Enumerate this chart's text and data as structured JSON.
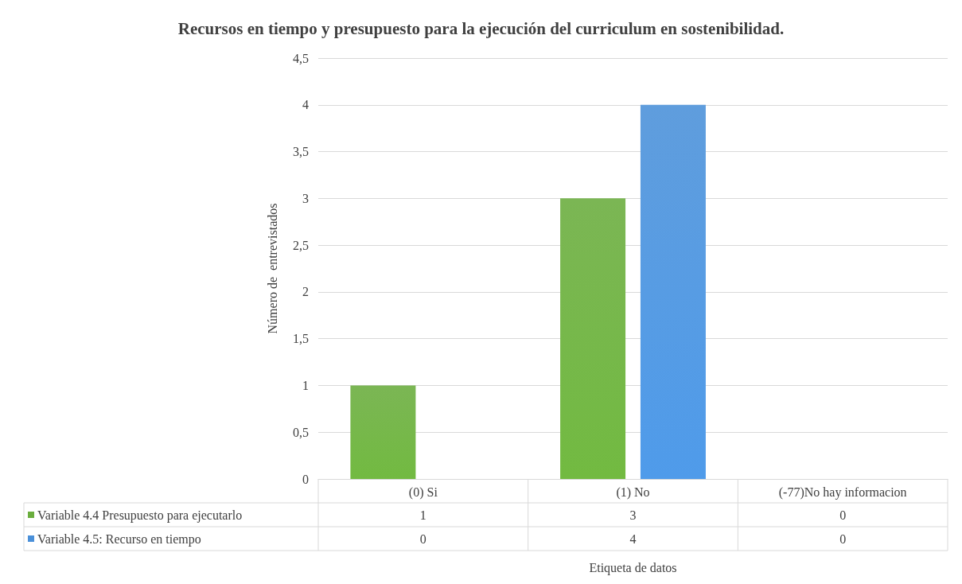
{
  "chart_data": {
    "type": "bar",
    "title": "Recursos en tiempo y presupuesto para la ejecución del curriculum en sostenibilidad.",
    "xlabel": "Etiqueta de datos",
    "ylabel": "Número de  entrevistados",
    "categories": [
      "(0) Si",
      "(1) No",
      "(-77)No hay informacion"
    ],
    "series": [
      {
        "name": "Variable 4.4 Presupuesto para ejecutarlo",
        "color": "#6aad3d",
        "values": [
          1,
          3,
          0
        ]
      },
      {
        "name": "Variable 4.5: Recurso en tiempo",
        "color": "#4a90d9",
        "values": [
          0,
          4,
          0
        ]
      }
    ],
    "ylim": [
      0,
      4.5
    ],
    "yticks": [
      0,
      {
        "value": 0.5,
        "label": "0,5"
      },
      1,
      {
        "value": 1.5,
        "label": "1,5"
      },
      2,
      {
        "value": 2.5,
        "label": "2,5"
      },
      3,
      {
        "value": 3.5,
        "label": "3,5"
      },
      4,
      {
        "value": 4.5,
        "label": "4,5"
      }
    ],
    "grid": "y",
    "legend": "bottom",
    "data_labels": true
  }
}
